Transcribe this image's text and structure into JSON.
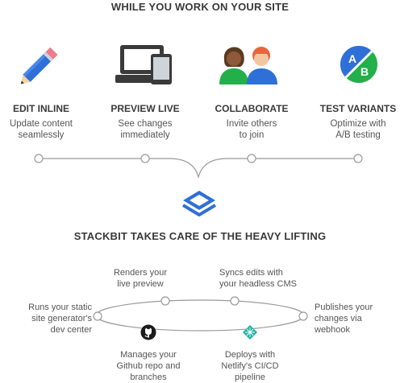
{
  "top_title": "WHILE YOU WORK ON YOUR SITE",
  "features": [
    {
      "icon": "pencil-icon",
      "title": "EDIT INLINE",
      "desc": "Update content\nseamlessly"
    },
    {
      "icon": "devices-icon",
      "title": "PREVIEW LIVE",
      "desc": "See changes\nimmediately"
    },
    {
      "icon": "people-icon",
      "title": "COLLABORATE",
      "desc": "Invite others\nto join"
    },
    {
      "icon": "ab-test-icon",
      "title": "TEST VARIANTS",
      "desc": "Optimize with\nA/B testing"
    }
  ],
  "middle_title": "STACKBIT TAKES CARE OF THE HEAVY LIFTING",
  "cycle": {
    "left": "Runs your static\nsite generator's\ndev center",
    "top_left": "Renders your\nlive preview",
    "top_right": "Syncs edits with\nyour headless CMS",
    "right": "Publishes your\nchanges via\nwebhook",
    "bottom_left": "Manages your\nGithub repo and\nbranches",
    "bottom_right": "Deploys with\nNetlify's CI/CD\npipeline"
  },
  "icons": {
    "stackbit": "stackbit-logo-icon",
    "github": "github-icon",
    "netlify": "netlify-icon"
  },
  "colors": {
    "pencil_blue": "#2f6fd8",
    "device_dark": "#3a3a3a",
    "ab_blue": "#2f6fd8",
    "ab_green": "#22b04b",
    "stackbit_blue": "#2f6fd8",
    "netlify_teal": "#20b2a6",
    "line_gray": "#9a9a9a"
  }
}
